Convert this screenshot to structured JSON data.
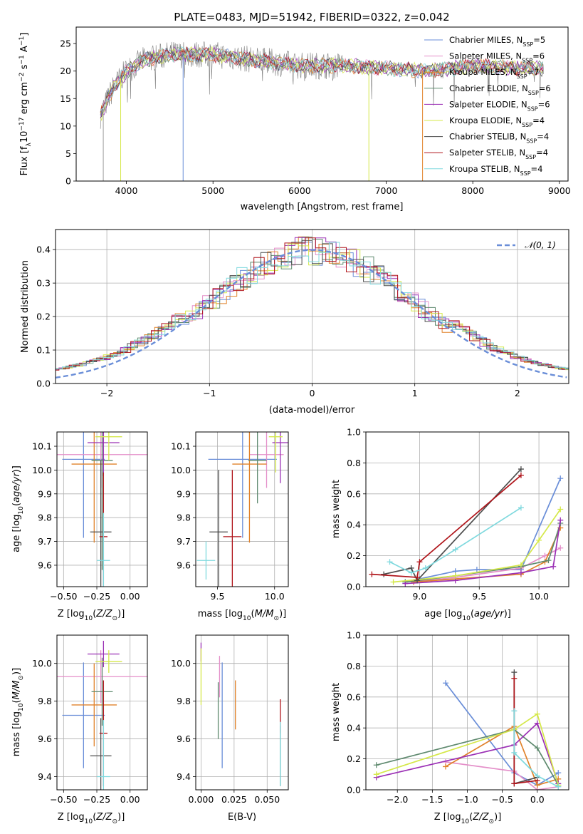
{
  "figure_title": "PLATE=0483, MJD=51942, FIBERID=0322, z=0.042",
  "colors": {
    "Chabrier MILES": "#6a8ed8",
    "Salpeter MILES": "#e48fc9",
    "Kroupa MILES": "#e1822a",
    "Chabrier ELODIE": "#5f8a6f",
    "Salpeter ELODIE": "#9b30b5",
    "Kroupa ELODIE": "#d5e84a",
    "Chabrier STELIB": "#4d4d4d",
    "Salpeter STELIB": "#b0151b",
    "Kroupa STELIB": "#7fd9de"
  },
  "chart_data": [
    {
      "id": "spectrum",
      "type": "line",
      "xlabel": "wavelength [Angstrom, rest frame]",
      "ylabel": "Flux [fλ10⁻¹⁷ erg cm⁻² s⁻¹ A⁻¹]",
      "xlim": [
        3420,
        9100
      ],
      "ylim": [
        0,
        28
      ],
      "xticks": [
        4000,
        5000,
        6000,
        7000,
        8000,
        9000
      ],
      "yticks": [
        0,
        5,
        10,
        15,
        20,
        25
      ],
      "grid": false,
      "legend_position": "top-right",
      "legend": [
        {
          "label": "Chabrier MILES, N_SSP=5",
          "text": "Chabrier MILES, N",
          "n": "5"
        },
        {
          "label": "Salpeter MILES, N_SSP=6",
          "text": "Salpeter MILES, N",
          "n": "6"
        },
        {
          "label": "Kroupa MILES, N_SSP=7",
          "text": "Kroupa MILES, N",
          "n": "7"
        },
        {
          "label": "Chabrier ELODIE, N_SSP=6",
          "text": "Chabrier ELODIE, N",
          "n": "6"
        },
        {
          "label": "Salpeter ELODIE, N_SSP=6",
          "text": "Salpeter ELODIE, N",
          "n": "6"
        },
        {
          "label": "Kroupa ELODIE, N_SSP=4",
          "text": "Kroupa ELODIE, N",
          "n": "4"
        },
        {
          "label": "Chabrier STELIB, N_SSP=4",
          "text": "Chabrier STELIB, N",
          "n": "4"
        },
        {
          "label": "Salpeter STELIB, N_SSP=4",
          "text": "Salpeter STELIB, N",
          "n": "4"
        },
        {
          "label": "Kroupa STELIB, N_SSP=4",
          "text": "Kroupa STELIB, N",
          "n": "4"
        }
      ],
      "continuum": {
        "x": [
          3700,
          3850,
          4000,
          4200,
          4500,
          5000,
          5500,
          6000,
          6500,
          7000,
          7500,
          8000,
          8500,
          8800
        ],
        "y": [
          12,
          17,
          20,
          22,
          23,
          23,
          22,
          21,
          21,
          20.5,
          20,
          21,
          20.5,
          20.5
        ]
      },
      "dips": [
        {
          "x": 3733,
          "y": 0
        },
        {
          "x": 3934,
          "y": 0
        },
        {
          "x": 4655,
          "y": 0
        },
        {
          "x": 6800,
          "y": 0
        },
        {
          "x": 7420,
          "y": 0
        }
      ]
    },
    {
      "id": "residuals",
      "type": "line",
      "xlabel": "(data-model)/error",
      "ylabel": "Normed distribution",
      "xlim": [
        -2.5,
        2.5
      ],
      "ylim": [
        0,
        0.46
      ],
      "xticks": [
        -2,
        -1,
        0,
        1,
        2
      ],
      "yticks": [
        0.0,
        0.1,
        0.2,
        0.3,
        0.4
      ],
      "grid": true,
      "legend_position": "top-right",
      "legend": [
        "𝒩(0, 1)"
      ],
      "gaussian": {
        "mean": 0,
        "sigma": 1
      }
    },
    {
      "id": "age_vs_Z",
      "type": "scatter",
      "xlabel": "Z [log10(Z/Z⊙)]",
      "ylabel": "age  [log10(age/yr)]",
      "xlim": [
        -0.55,
        0.13
      ],
      "ylim": [
        9.51,
        10.16
      ],
      "xticks": [
        -0.5,
        -0.25,
        0.0
      ],
      "yticks": [
        9.6,
        9.7,
        9.8,
        9.9,
        10.0,
        10.1
      ],
      "grid": true,
      "points": [
        {
          "model": "Chabrier MILES",
          "x": -0.35,
          "y": 10.045,
          "xerr": 0.16,
          "yerr": 0.33
        },
        {
          "model": "Salpeter MILES",
          "x": -0.22,
          "y": 10.065,
          "xerr": 0.35,
          "yerr": 0.14
        },
        {
          "model": "Kroupa MILES",
          "x": -0.27,
          "y": 10.025,
          "xerr": 0.17,
          "yerr": 0.33
        },
        {
          "model": "Chabrier ELODIE",
          "x": -0.21,
          "y": 10.04,
          "xerr": 0.08,
          "yerr": 0.46
        },
        {
          "model": "Salpeter ELODIE",
          "x": -0.2,
          "y": 10.115,
          "xerr": 0.12,
          "yerr": 0.14
        },
        {
          "model": "Kroupa ELODIE",
          "x": -0.16,
          "y": 10.14,
          "xerr": 0.1,
          "yerr": 0.1
        },
        {
          "model": "Chabrier STELIB",
          "x": -0.22,
          "y": 9.74,
          "xerr": 0.08,
          "yerr": 0.3
        },
        {
          "model": "Salpeter STELIB",
          "x": -0.2,
          "y": 9.72,
          "xerr": 0.03,
          "yerr": 0.27
        },
        {
          "model": "Kroupa STELIB",
          "x": -0.2,
          "y": 9.62,
          "xerr": 0.05,
          "yerr": 0.2
        }
      ]
    },
    {
      "id": "age_vs_mass",
      "type": "scatter",
      "xlabel": "mass [log10(M/M⊙)]",
      "ylabel": "",
      "xlim": [
        9.31,
        10.12
      ],
      "ylim": [
        9.51,
        10.16
      ],
      "xticks": [
        9.5,
        10.0
      ],
      "yticks": [
        9.6,
        9.7,
        9.8,
        9.9,
        10.0,
        10.1
      ],
      "grid": true,
      "points": [
        {
          "model": "Chabrier MILES",
          "x": 9.72,
          "y": 10.045,
          "xerr": 0.3,
          "yerr": 0.33
        },
        {
          "model": "Salpeter MILES",
          "x": 9.93,
          "y": 10.065,
          "xerr": 0.15,
          "yerr": 0.14
        },
        {
          "model": "Kroupa MILES",
          "x": 9.78,
          "y": 10.025,
          "xerr": 0.15,
          "yerr": 0.33
        },
        {
          "model": "Chabrier ELODIE",
          "x": 9.85,
          "y": 10.04,
          "xerr": 0.08,
          "yerr": 0.18
        },
        {
          "model": "Salpeter ELODIE",
          "x": 10.05,
          "y": 10.115,
          "xerr": 0.07,
          "yerr": 0.17
        },
        {
          "model": "Kroupa ELODIE",
          "x": 10.01,
          "y": 10.14,
          "xerr": 0.06,
          "yerr": 0.15
        },
        {
          "model": "Chabrier STELIB",
          "x": 9.51,
          "y": 9.74,
          "xerr": 0.08,
          "yerr": 0.26
        },
        {
          "model": "Salpeter STELIB",
          "x": 9.63,
          "y": 9.72,
          "xerr": 0.08,
          "yerr": 0.28
        },
        {
          "model": "Kroupa STELIB",
          "x": 9.4,
          "y": 9.62,
          "xerr": 0.08,
          "yerr": 0.08
        }
      ]
    },
    {
      "id": "weight_vs_age",
      "type": "line",
      "xlabel": "age  [log10(age/yr)]",
      "ylabel": "mass weight",
      "xlim": [
        8.55,
        10.25
      ],
      "ylim": [
        0,
        1.0
      ],
      "xticks": [
        9.0,
        9.5,
        10.0
      ],
      "yticks": [
        0.0,
        0.2,
        0.4,
        0.6,
        0.8,
        1.0
      ],
      "grid": true,
      "series": [
        {
          "model": "Chabrier MILES",
          "x": [
            8.88,
            9.0,
            9.3,
            9.48,
            9.85,
            10.18
          ],
          "y": [
            0.03,
            0.05,
            0.1,
            0.11,
            0.11,
            0.7
          ]
        },
        {
          "model": "Salpeter MILES",
          "x": [
            8.95,
            9.3,
            9.85,
            10.05,
            10.18
          ],
          "y": [
            0.03,
            0.06,
            0.12,
            0.2,
            0.25
          ]
        },
        {
          "model": "Kroupa MILES",
          "x": [
            8.95,
            9.3,
            9.85,
            10.05,
            10.18
          ],
          "y": [
            0.03,
            0.05,
            0.08,
            0.16,
            0.38
          ]
        },
        {
          "model": "Chabrier ELODIE",
          "x": [
            8.88,
            9.3,
            9.85,
            10.08,
            10.18
          ],
          "y": [
            0.03,
            0.07,
            0.13,
            0.17,
            0.41
          ]
        },
        {
          "model": "Salpeter ELODIE",
          "x": [
            8.88,
            9.3,
            9.85,
            10.12,
            10.18
          ],
          "y": [
            0.02,
            0.04,
            0.09,
            0.13,
            0.43
          ]
        },
        {
          "model": "Kroupa ELODIE",
          "x": [
            8.78,
            9.3,
            9.85,
            10.0,
            10.18
          ],
          "y": [
            0.03,
            0.07,
            0.14,
            0.3,
            0.5
          ]
        },
        {
          "model": "Chabrier STELIB",
          "x": [
            8.7,
            8.93,
            8.98,
            9.85
          ],
          "y": [
            0.08,
            0.12,
            0.04,
            0.76
          ]
        },
        {
          "model": "Salpeter STELIB",
          "x": [
            8.6,
            8.98,
            9.0,
            9.85
          ],
          "y": [
            0.08,
            0.06,
            0.16,
            0.72
          ]
        },
        {
          "model": "Kroupa STELIB",
          "x": [
            8.75,
            8.93,
            9.05,
            9.3,
            9.85
          ],
          "y": [
            0.16,
            0.09,
            0.12,
            0.24,
            0.51
          ]
        }
      ]
    },
    {
      "id": "mass_vs_Z",
      "type": "scatter",
      "xlabel": "Z [log10(Z/Z⊙)]",
      "ylabel": "mass [log10(M/M⊙)]",
      "xlim": [
        -0.55,
        0.13
      ],
      "ylim": [
        9.33,
        10.15
      ],
      "xticks": [
        -0.5,
        -0.25,
        0.0
      ],
      "yticks": [
        9.4,
        9.6,
        9.8,
        10.0
      ],
      "grid": true,
      "points": [
        {
          "model": "Chabrier MILES",
          "x": -0.35,
          "y": 9.725,
          "xerr": 0.16,
          "yerr": 0.28
        },
        {
          "model": "Salpeter MILES",
          "x": -0.22,
          "y": 9.93,
          "xerr": 0.35,
          "yerr": 0.14
        },
        {
          "model": "Kroupa MILES",
          "x": -0.27,
          "y": 9.78,
          "xerr": 0.17,
          "yerr": 0.22
        },
        {
          "model": "Chabrier ELODIE",
          "x": -0.21,
          "y": 9.85,
          "xerr": 0.08,
          "yerr": 0.18
        },
        {
          "model": "Salpeter ELODIE",
          "x": -0.2,
          "y": 10.05,
          "xerr": 0.12,
          "yerr": 0.07
        },
        {
          "model": "Kroupa ELODIE",
          "x": -0.16,
          "y": 10.01,
          "xerr": 0.1,
          "yerr": 0.06
        },
        {
          "model": "Chabrier STELIB",
          "x": -0.22,
          "y": 9.51,
          "xerr": 0.08,
          "yerr": 0.2
        },
        {
          "model": "Salpeter STELIB",
          "x": -0.2,
          "y": 9.63,
          "xerr": 0.03,
          "yerr": 0.28
        },
        {
          "model": "Kroupa STELIB",
          "x": -0.2,
          "y": 9.4,
          "xerr": 0.05,
          "yerr": 0.3
        }
      ]
    },
    {
      "id": "mass_vs_ebv",
      "type": "scatter",
      "xlabel": "E(B-V)",
      "ylabel": "",
      "xlim": [
        -0.004,
        0.066
      ],
      "ylim": [
        9.33,
        10.15
      ],
      "xticks": [
        0.0,
        0.025,
        0.05
      ],
      "xticklabels": [
        "0.000",
        "0.025",
        "0.050"
      ],
      "yticks": [
        9.4,
        9.6,
        9.8,
        10.0
      ],
      "grid": true,
      "points": [
        {
          "model": "Chabrier MILES",
          "x": 0.016,
          "y": 9.725,
          "xerr": 0,
          "yerr": 0.28
        },
        {
          "model": "Salpeter MILES",
          "x": 0.014,
          "y": 9.93,
          "xerr": 0,
          "yerr": 0.11
        },
        {
          "model": "Kroupa MILES",
          "x": 0.026,
          "y": 9.78,
          "xerr": 0,
          "yerr": 0.13
        },
        {
          "model": "Chabrier ELODIE",
          "x": 0.013,
          "y": 9.75,
          "xerr": 0,
          "yerr": 0.15
        },
        {
          "model": "Salpeter ELODIE",
          "x": 0.0,
          "y": 10.06,
          "xerr": 0,
          "yerr": 0.05
        },
        {
          "model": "Kroupa ELODIE",
          "x": 0.0,
          "y": 9.93,
          "xerr": 0,
          "yerr": 0.15
        },
        {
          "model": "Chabrier STELIB",
          "x": 0.06,
          "y": 9.51,
          "xerr": 0,
          "yerr": 0.16
        },
        {
          "model": "Salpeter STELIB",
          "x": 0.06,
          "y": 9.72,
          "xerr": 0,
          "yerr": 0.09
        },
        {
          "model": "Kroupa STELIB",
          "x": 0.06,
          "y": 9.52,
          "xerr": 0,
          "yerr": 0.17
        }
      ]
    },
    {
      "id": "weight_vs_Z",
      "type": "line",
      "xlabel": "Z [log10(Z/Z⊙)]",
      "ylabel": "mass weight",
      "xlim": [
        -2.45,
        0.45
      ],
      "ylim": [
        0,
        1.0
      ],
      "xticks": [
        -2.0,
        -1.5,
        -1.0,
        -0.5,
        0.0
      ],
      "yticks": [
        0.0,
        0.2,
        0.4,
        0.6,
        0.8,
        1.0
      ],
      "grid": true,
      "series": [
        {
          "model": "Chabrier MILES",
          "x": [
            -1.31,
            -0.33,
            0.0,
            0.3
          ],
          "y": [
            0.69,
            0.11,
            0.03,
            0.11
          ]
        },
        {
          "model": "Salpeter MILES",
          "x": [
            -1.31,
            -0.33,
            0.0,
            0.3
          ],
          "y": [
            0.18,
            0.12,
            0.0,
            0.02
          ]
        },
        {
          "model": "Kroupa MILES",
          "x": [
            -1.31,
            -0.33,
            0.0,
            0.3
          ],
          "y": [
            0.15,
            0.41,
            0.03,
            0.07
          ]
        },
        {
          "model": "Chabrier ELODIE",
          "x": [
            -2.3,
            -0.33,
            0.0,
            0.3
          ],
          "y": [
            0.16,
            0.39,
            0.27,
            0.03
          ]
        },
        {
          "model": "Salpeter ELODIE",
          "x": [
            -2.3,
            -0.33,
            0.0,
            0.3
          ],
          "y": [
            0.08,
            0.29,
            0.43,
            0.04
          ]
        },
        {
          "model": "Kroupa ELODIE",
          "x": [
            -2.3,
            -0.33,
            0.0,
            0.3
          ],
          "y": [
            0.1,
            0.39,
            0.49,
            0.03
          ]
        },
        {
          "model": "Chabrier STELIB",
          "x": [
            -0.33,
            -0.33,
            0.0
          ],
          "y": [
            0.76,
            0.04,
            0.08
          ]
        },
        {
          "model": "Salpeter STELIB",
          "x": [
            -0.33,
            -0.33,
            0.0
          ],
          "y": [
            0.72,
            0.04,
            0.06
          ]
        },
        {
          "model": "Kroupa STELIB",
          "x": [
            -0.33,
            -0.33,
            0.0,
            0.3
          ],
          "y": [
            0.51,
            0.24,
            0.09,
            0.02
          ]
        }
      ]
    }
  ]
}
